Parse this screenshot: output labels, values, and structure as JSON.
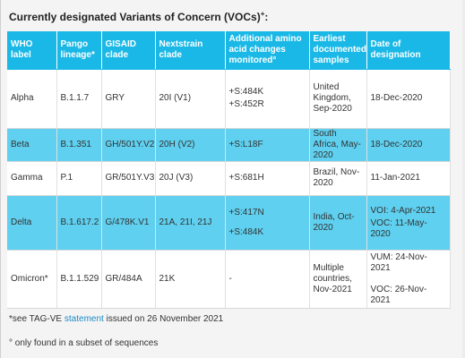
{
  "title": "Currently designated Variants of Concern (VOCs)",
  "title_sup": "+",
  "headers": [
    "WHO label",
    "Pango lineage*",
    "GISAID clade",
    "Nextstrain clade",
    "Additional amino acid changes monitored°",
    "Earliest documented samples",
    "Date of designation"
  ],
  "rows": [
    {
      "who": "Alpha",
      "pango": "B.1.1.7",
      "gisaid": "GRY",
      "nextstrain": "20I (V1)",
      "changes": [
        "+S:484K",
        "+S:452R"
      ],
      "earliest": "United Kingdom, Sep-2020",
      "designation": [
        "18-Dec-2020"
      ]
    },
    {
      "who": "Beta",
      "pango": "B.1.351",
      "gisaid": "GH/501Y.V2",
      "nextstrain": "20H (V2)",
      "changes": [
        "+S:L18F"
      ],
      "earliest": "South Africa, May-2020",
      "designation": [
        "18-Dec-2020"
      ]
    },
    {
      "who": "Gamma",
      "pango": "P.1",
      "gisaid": "GR/501Y.V3",
      "nextstrain": "20J (V3)",
      "changes": [
        "+S:681H"
      ],
      "earliest": "Brazil, Nov-2020",
      "designation": [
        "11-Jan-2021"
      ]
    },
    {
      "who": "Delta",
      "pango": "B.1.617.2",
      "gisaid": "G/478K.V1",
      "nextstrain": "21A, 21I, 21J",
      "changes": [
        "+S:417N",
        "+S:484K"
      ],
      "earliest": "India, Oct-2020",
      "designation": [
        "VOI: 4-Apr-2021",
        "VOC: 11-May-2020"
      ]
    },
    {
      "who": "Omicron*",
      "pango": "B.1.1.529",
      "gisaid": "GR/484A",
      "nextstrain": "21K",
      "changes": [
        "-"
      ],
      "earliest": "Multiple countries, Nov-2021",
      "designation": [
        "VUM: 24-Nov-2021",
        "VOC: 26-Nov-2021"
      ]
    }
  ],
  "footnotes": {
    "see_prefix": "*see TAG-VE",
    "see_link": "statement",
    "see_suffix": "issued on 26 November 2021",
    "subset": "° only found in a subset of sequences"
  },
  "colors": {
    "header_bg": "#1ab8e6",
    "highlight_row_bg": "#5fd0ef",
    "link": "#1a8cc7"
  }
}
